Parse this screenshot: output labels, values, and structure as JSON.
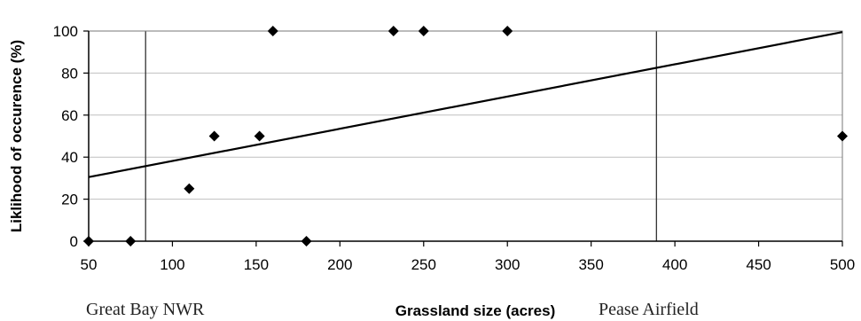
{
  "chart_data": {
    "type": "scatter",
    "title": "",
    "xlabel": "Grassland size (acres)",
    "ylabel": "Liklihood of occurence (%)",
    "xlim": [
      50,
      500
    ],
    "ylim": [
      0,
      100
    ],
    "x_ticks": [
      "50",
      "100",
      "150",
      "200",
      "250",
      "300",
      "350",
      "400",
      "450",
      "500"
    ],
    "y_ticks": [
      "0",
      "20",
      "40",
      "60",
      "80",
      "100"
    ],
    "grid": "horizontal",
    "legend": "none",
    "colors": {
      "markers": "#000000",
      "trendline": "#000000",
      "gridlines": "#bfbfbf"
    },
    "points": [
      {
        "x": 50,
        "y": 0
      },
      {
        "x": 75,
        "y": 0
      },
      {
        "x": 110,
        "y": 25
      },
      {
        "x": 125,
        "y": 50
      },
      {
        "x": 152,
        "y": 50
      },
      {
        "x": 160,
        "y": 100
      },
      {
        "x": 180,
        "y": 0
      },
      {
        "x": 232,
        "y": 100
      },
      {
        "x": 250,
        "y": 100
      },
      {
        "x": 300,
        "y": 100
      },
      {
        "x": 500,
        "y": 50
      }
    ],
    "trendline": {
      "x": [
        50,
        500
      ],
      "y": [
        30.5,
        99.5
      ]
    },
    "reference_lines": [
      {
        "x": 84,
        "label": "Great Bay NWR"
      },
      {
        "x": 389,
        "label": "Pease Airfield"
      }
    ]
  }
}
